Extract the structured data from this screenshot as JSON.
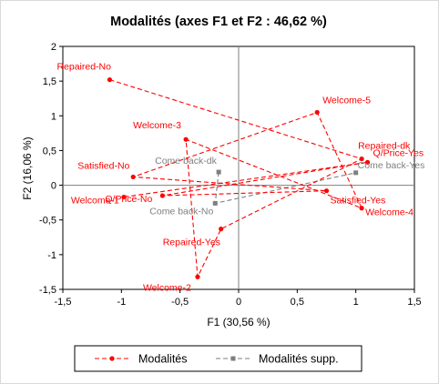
{
  "chart_data": {
    "type": "scatter",
    "title": "Modalités (axes F1 et F2 : 46,62 %)",
    "xlabel": "F1 (30,56 %)",
    "ylabel": "F2 (16,06 %)",
    "xlim": [
      -1.5,
      1.5
    ],
    "ylim": [
      -1.5,
      2
    ],
    "x_ticks": [
      -1.5,
      -1,
      -0.5,
      0,
      0.5,
      1,
      1.5
    ],
    "x_tick_labels": [
      "-1,5",
      "-1",
      "-0,5",
      "0",
      "0,5",
      "1",
      "1,5"
    ],
    "y_ticks": [
      -1.5,
      -1,
      -0.5,
      0,
      0.5,
      1,
      1.5,
      2
    ],
    "y_tick_labels": [
      "-1,5",
      "-1",
      "-0,5",
      "0",
      "0,5",
      "1",
      "1,5",
      "2"
    ],
    "grid": false,
    "legend_position": "bottom",
    "series": [
      {
        "name": "Modalités",
        "color": "#ff0000",
        "line_style": "dashed",
        "points": [
          {
            "label": "Repaired-No",
            "x": -1.1,
            "y": 1.52
          },
          {
            "label": "Repaired-dk",
            "x": 1.05,
            "y": 0.38
          },
          {
            "label": "Repaired-Yes",
            "x": -0.15,
            "y": -0.63
          },
          {
            "label": "Welcome-2",
            "x": -0.35,
            "y": -1.32
          },
          {
            "label": "Welcome-3",
            "x": -0.45,
            "y": 0.66
          },
          {
            "label": "Welcome-4",
            "x": 1.05,
            "y": -0.33
          },
          {
            "label": "Welcome-5",
            "x": 0.67,
            "y": 1.05
          },
          {
            "label": "Satisfied-No",
            "x": -0.9,
            "y": 0.12
          },
          {
            "label": "Satisfied-Yes",
            "x": 0.75,
            "y": -0.08
          },
          {
            "label": "Q/Price-No",
            "x": -0.65,
            "y": -0.15
          },
          {
            "label": "Q/Price-Yes",
            "x": 1.1,
            "y": 0.33
          },
          {
            "label": "Welcome-1",
            "x": -0.98,
            "y": -0.17
          }
        ]
      },
      {
        "name": "Modalités supp.",
        "color": "#7f7f7f",
        "line_style": "dashed",
        "points": [
          {
            "label": "Come back-dk",
            "x": -0.17,
            "y": 0.19
          },
          {
            "label": "Come back-No",
            "x": -0.2,
            "y": -0.26
          },
          {
            "label": "Come back-Yes",
            "x": 1.0,
            "y": 0.18
          }
        ]
      }
    ]
  }
}
